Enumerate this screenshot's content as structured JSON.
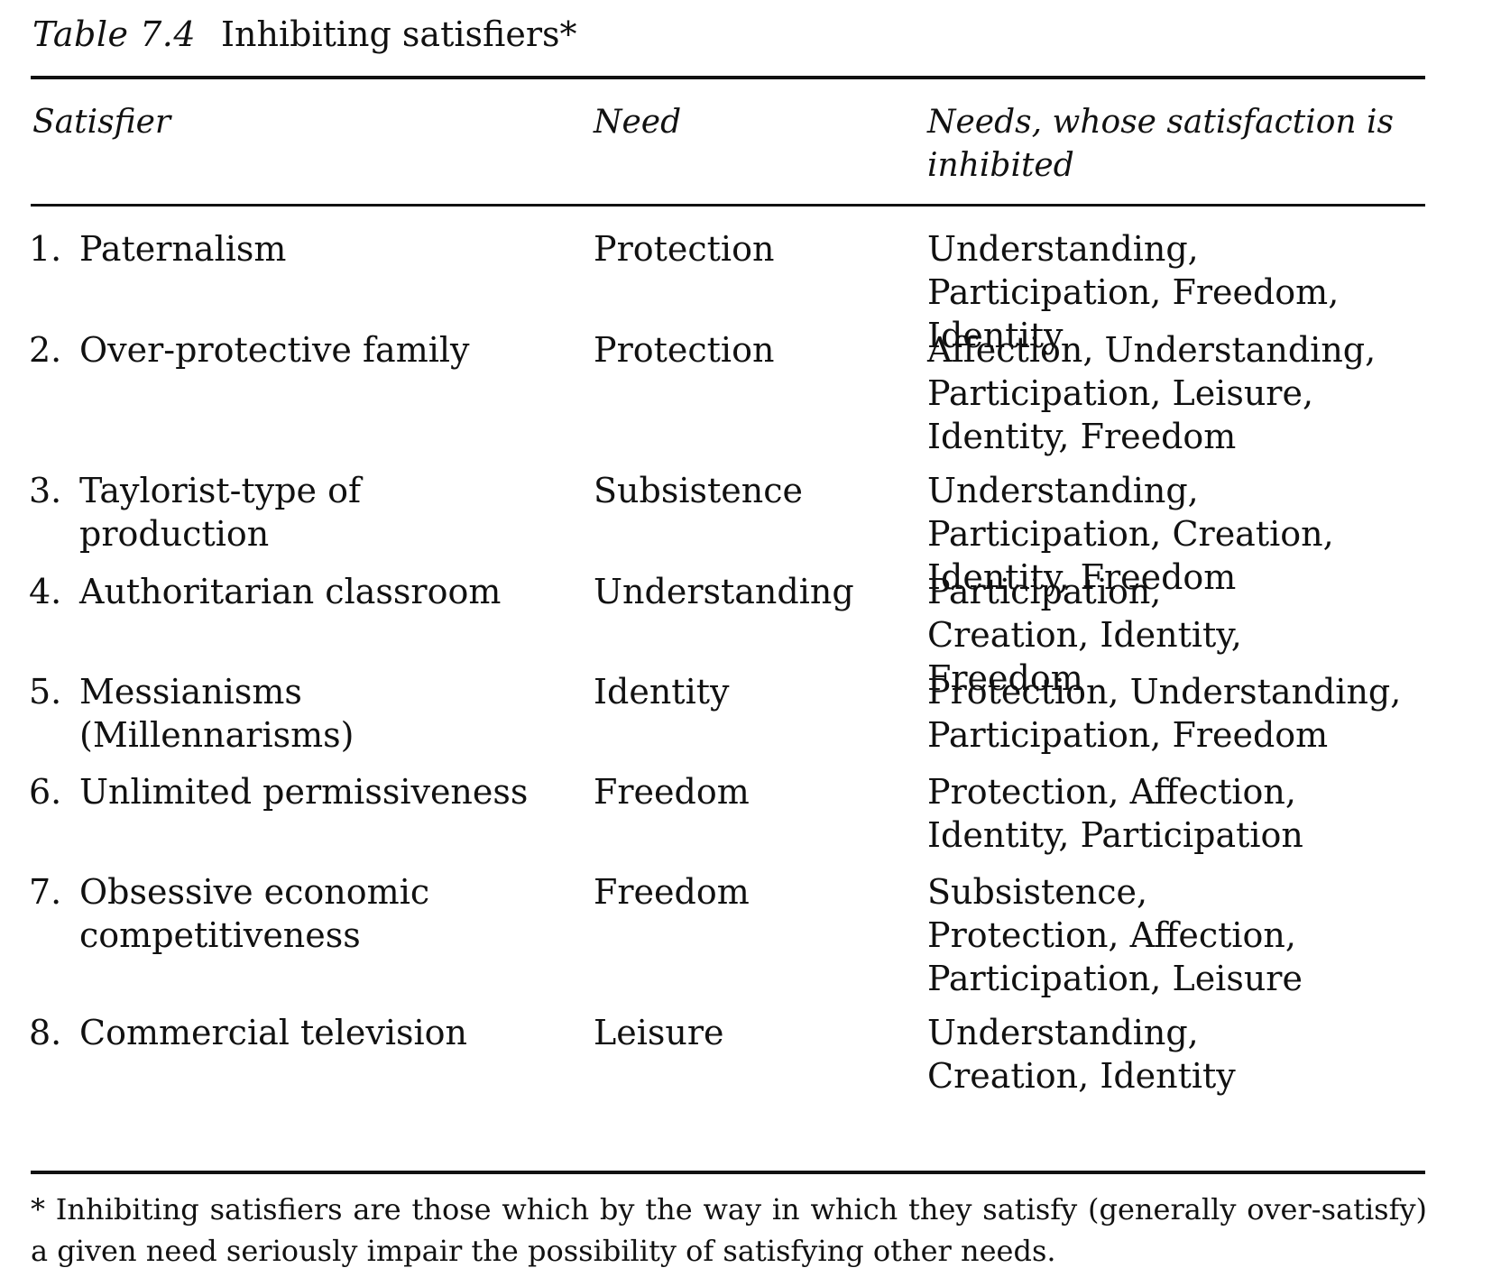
{
  "caption": {
    "label": "Table 7.4",
    "title": "Inhibiting satisfiers*"
  },
  "headers": {
    "satisfier": "Satisfier",
    "need": "Need",
    "inhibited": "Needs, whose satisfaction is inhibited"
  },
  "rows": [
    {
      "num": "1.",
      "satisfier": "Paternalism",
      "need": "Protection",
      "inhibited": "Understanding, Participation, Freedom, Identity"
    },
    {
      "num": "2.",
      "satisfier": "Over-protective family",
      "need": "Protection",
      "inhibited": "Affection, Understanding, Participation, Leisure, Identity, Freedom"
    },
    {
      "num": "3.",
      "satisfier": "Taylorist-type of production",
      "need": "Subsistence",
      "inhibited": "Understanding, Participation, Creation, Identity, Freedom"
    },
    {
      "num": "4.",
      "satisfier": "Authoritarian classroom",
      "need": "Understanding",
      "inhibited": "Participation, Creation, Identity, Freedom"
    },
    {
      "num": "5.",
      "satisfier": "Messianisms (Millennarisms)",
      "need": "Identity",
      "inhibited": "Protection, Understanding, Participation, Freedom"
    },
    {
      "num": "6.",
      "satisfier": "Unlimited permissiveness",
      "need": "Freedom",
      "inhibited": "Protection, Affection, Identity, Participation"
    },
    {
      "num": "7.",
      "satisfier": "Obsessive economic competitiveness",
      "need": "Freedom",
      "inhibited": "Subsistence, Protection, Affection, Participation, Leisure"
    },
    {
      "num": "8.",
      "satisfier": "Commercial television",
      "need": "Leisure",
      "inhibited": "Understanding, Creation, Identity"
    }
  ],
  "footnote": "* Inhibiting satisfiers are those which by the way in which they satisfy (generally over-satisfy) a given need seriously impair the possibility of satisfying other needs."
}
